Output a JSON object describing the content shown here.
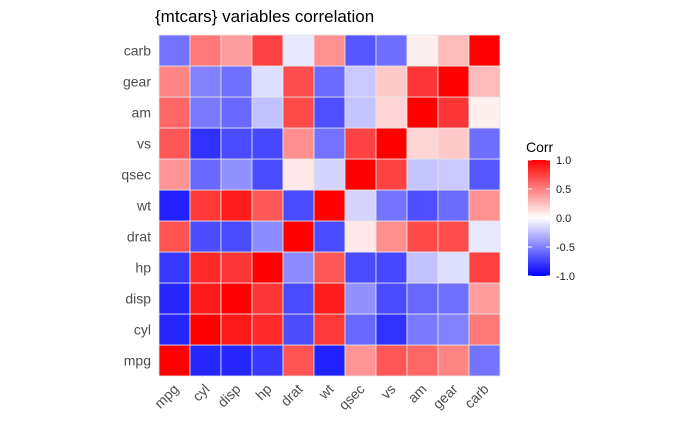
{
  "chart_data": {
    "type": "heatmap",
    "title": "{mtcars} variables correlation",
    "x_labels": [
      "mpg",
      "cyl",
      "disp",
      "hp",
      "drat",
      "wt",
      "qsec",
      "vs",
      "am",
      "gear",
      "carb"
    ],
    "y_labels": [
      "mpg",
      "cyl",
      "disp",
      "hp",
      "drat",
      "wt",
      "qsec",
      "vs",
      "am",
      "gear",
      "carb"
    ],
    "values": [
      [
        1.0,
        -0.85,
        -0.85,
        -0.78,
        0.68,
        -0.87,
        0.42,
        0.66,
        0.6,
        0.48,
        -0.55
      ],
      [
        -0.85,
        1.0,
        0.9,
        0.83,
        -0.7,
        0.78,
        -0.59,
        -0.81,
        -0.52,
        -0.49,
        0.53
      ],
      [
        -0.85,
        0.9,
        1.0,
        0.79,
        -0.71,
        0.89,
        -0.43,
        -0.71,
        -0.59,
        -0.56,
        0.39
      ],
      [
        -0.78,
        0.83,
        0.79,
        1.0,
        -0.45,
        0.66,
        -0.71,
        -0.72,
        -0.24,
        -0.13,
        0.75
      ],
      [
        0.68,
        -0.7,
        -0.71,
        -0.45,
        1.0,
        -0.71,
        0.09,
        0.44,
        0.71,
        0.7,
        -0.09
      ],
      [
        -0.87,
        0.78,
        0.89,
        0.66,
        -0.71,
        1.0,
        -0.17,
        -0.55,
        -0.69,
        -0.58,
        0.43
      ],
      [
        0.42,
        -0.59,
        -0.43,
        -0.71,
        0.09,
        -0.17,
        1.0,
        0.74,
        -0.23,
        -0.21,
        -0.66
      ],
      [
        0.66,
        -0.81,
        -0.71,
        -0.72,
        0.44,
        -0.55,
        0.74,
        1.0,
        0.17,
        0.21,
        -0.57
      ],
      [
        0.6,
        -0.52,
        -0.59,
        -0.24,
        0.71,
        -0.69,
        -0.23,
        0.17,
        1.0,
        0.79,
        0.06
      ],
      [
        0.48,
        -0.49,
        -0.56,
        -0.13,
        0.7,
        -0.58,
        -0.21,
        0.21,
        0.79,
        1.0,
        0.27
      ],
      [
        -0.55,
        0.53,
        0.39,
        0.75,
        -0.09,
        0.43,
        -0.66,
        -0.57,
        0.06,
        0.27,
        1.0
      ]
    ],
    "color_scale": {
      "low": "#0000FF",
      "mid": "#FFFFFF",
      "high": "#FF0000",
      "limits": [
        -1,
        1
      ]
    },
    "legend": {
      "title": "Corr",
      "ticks": [
        1.0,
        0.5,
        0.0,
        -0.5,
        -1.0
      ],
      "tick_labels": [
        "1.0",
        "0.5",
        "0.0",
        "-0.5",
        "-1.0"
      ],
      "position": "right"
    }
  }
}
